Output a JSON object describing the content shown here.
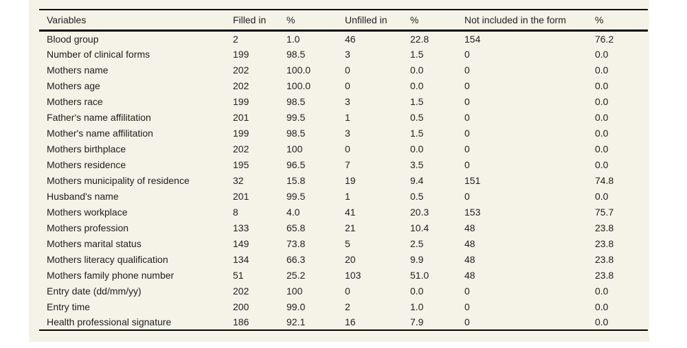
{
  "table": {
    "columns": [
      "Variables",
      "Filled in",
      "%",
      "Unfilled in",
      "%",
      "Not included in the form",
      "%"
    ],
    "rows": [
      [
        "Blood group",
        "2",
        "1.0",
        "46",
        "22.8",
        "154",
        "76.2"
      ],
      [
        "Number of clinical forms",
        "199",
        "98.5",
        "3",
        "1.5",
        "0",
        "0.0"
      ],
      [
        "Mothers name",
        "202",
        "100.0",
        "0",
        "0.0",
        "0",
        "0.0"
      ],
      [
        "Mothers age",
        "202",
        "100.0",
        "0",
        "0.0",
        "0",
        "0.0"
      ],
      [
        "Mothers race",
        "199",
        "98.5",
        "3",
        "1.5",
        "0",
        "0.0"
      ],
      [
        "Father's name affilitation",
        "201",
        "99.5",
        "1",
        "0.5",
        "0",
        "0.0"
      ],
      [
        "Mother's name affilitation",
        "199",
        "98.5",
        "3",
        "1.5",
        "0",
        "0.0"
      ],
      [
        "Mothers birthplace",
        "202",
        "100",
        "0",
        "0.0",
        "0",
        "0.0"
      ],
      [
        "Mothers residence",
        "195",
        "96.5",
        "7",
        "3.5",
        "0",
        "0.0"
      ],
      [
        "Mothers municipality of residence",
        "32",
        "15.8",
        "19",
        "9.4",
        "151",
        "74.8"
      ],
      [
        "Husband's name",
        "201",
        "99.5",
        "1",
        "0.5",
        "0",
        "0.0"
      ],
      [
        "Mothers workplace",
        "8",
        "4.0",
        "41",
        "20.3",
        "153",
        "75.7"
      ],
      [
        "Mothers profession",
        "133",
        "65.8",
        "21",
        "10.4",
        "48",
        "23.8"
      ],
      [
        "Mothers marital status",
        "149",
        "73.8",
        "5",
        "2.5",
        "48",
        "23.8"
      ],
      [
        "Mothers literacy qualification",
        "134",
        "66.3",
        "20",
        "9.9",
        "48",
        "23.8"
      ],
      [
        "Mothers family phone number",
        "51",
        "25.2",
        "103",
        "51.0",
        "48",
        "23.8"
      ],
      [
        "Entry date (dd/mm/yy)",
        "202",
        "100",
        "0",
        "0.0",
        "0",
        "0.0"
      ],
      [
        "Entry time",
        "200",
        "99.0",
        "2",
        "1.0",
        "0",
        "0.0"
      ],
      [
        "Health professional signature",
        "186",
        "92.1",
        "16",
        "7.9",
        "0",
        "0.0"
      ]
    ],
    "colors": {
      "sheet_background": "#f5f2e8",
      "text": "#1d1d1b",
      "rule": "#000000"
    }
  }
}
